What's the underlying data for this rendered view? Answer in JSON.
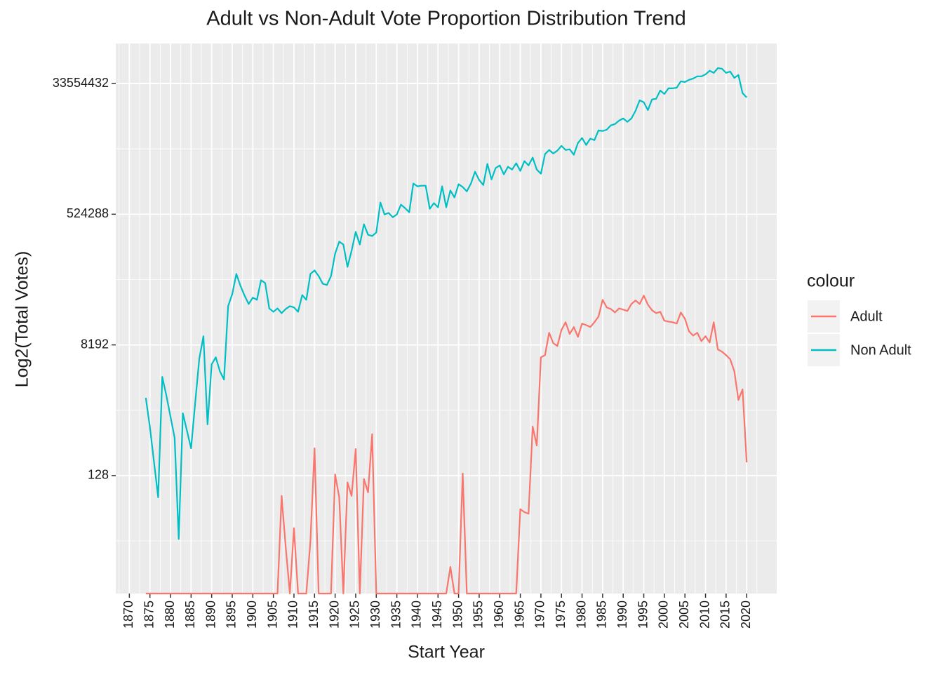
{
  "chart_data": {
    "type": "line",
    "title": "Adult vs Non-Adult Vote Proportion Distribution Trend",
    "x_label": "Start Year",
    "y_label": "Log2(Total Votes)",
    "legend_title": "colour",
    "legend": "right",
    "log_base": 2,
    "grid": true,
    "x": [
      1874,
      1875,
      1876,
      1877,
      1878,
      1879,
      1880,
      1881,
      1882,
      1883,
      1884,
      1885,
      1886,
      1887,
      1888,
      1889,
      1890,
      1891,
      1892,
      1893,
      1894,
      1895,
      1896,
      1897,
      1898,
      1899,
      1900,
      1901,
      1902,
      1903,
      1904,
      1905,
      1906,
      1907,
      1908,
      1909,
      1910,
      1911,
      1912,
      1913,
      1914,
      1915,
      1916,
      1917,
      1918,
      1919,
      1920,
      1921,
      1922,
      1923,
      1924,
      1925,
      1926,
      1927,
      1928,
      1929,
      1930,
      1931,
      1932,
      1933,
      1934,
      1935,
      1936,
      1937,
      1938,
      1939,
      1940,
      1941,
      1942,
      1943,
      1944,
      1945,
      1946,
      1947,
      1948,
      1949,
      1950,
      1951,
      1952,
      1953,
      1954,
      1955,
      1956,
      1957,
      1958,
      1959,
      1960,
      1961,
      1962,
      1963,
      1964,
      1965,
      1966,
      1967,
      1968,
      1969,
      1970,
      1971,
      1972,
      1973,
      1974,
      1975,
      1976,
      1977,
      1978,
      1979,
      1980,
      1981,
      1982,
      1983,
      1984,
      1985,
      1986,
      1987,
      1988,
      1989,
      1990,
      1991,
      1992,
      1993,
      1994,
      1995,
      1996,
      1997,
      1998,
      1999,
      2000,
      2001,
      2002,
      2003,
      2004,
      2005,
      2006,
      2007,
      2008,
      2009,
      2010,
      2011,
      2012,
      2013,
      2014,
      2015,
      2016,
      2017,
      2018,
      2019,
      2020
    ],
    "series": [
      {
        "name": "Adult",
        "color": "#F8766D",
        "values": [
          0,
          0,
          0,
          0,
          0,
          0,
          0,
          0,
          0,
          0,
          0,
          0,
          0,
          0,
          0,
          0,
          0,
          0,
          0,
          0,
          0,
          0,
          0,
          0,
          0,
          0,
          0,
          0,
          0,
          0,
          0,
          0,
          0,
          67,
          13,
          0,
          24,
          0,
          0,
          0,
          16,
          305,
          0,
          0,
          0,
          0,
          133,
          64,
          0,
          103,
          67,
          298,
          0,
          115,
          75,
          478,
          0,
          0,
          0,
          0,
          0,
          0,
          0,
          0,
          0,
          0,
          0,
          0,
          0,
          0,
          0,
          0,
          0,
          0,
          7,
          0,
          0,
          137,
          0,
          0,
          0,
          0,
          0,
          0,
          0,
          0,
          0,
          0,
          0,
          0,
          0,
          44,
          40,
          38,
          609,
          333,
          5520,
          5910,
          12070,
          8660,
          7910,
          13210,
          16850,
          11590,
          14460,
          10580,
          16150,
          15390,
          14460,
          16850,
          20170,
          34400,
          27000,
          25700,
          23000,
          26200,
          25200,
          24100,
          30100,
          33700,
          30100,
          39300,
          29500,
          24700,
          22500,
          23500,
          17700,
          17200,
          16850,
          16150,
          23000,
          18800,
          12580,
          11030,
          12070,
          9220,
          10800,
          8840,
          16850,
          7080,
          6610,
          5910,
          5180,
          3540,
          1420,
          1990,
          195
        ]
      },
      {
        "name": "Non Adult",
        "color": "#00BFC4",
        "values": [
          1520,
          596,
          195,
          64,
          2960,
          1630,
          832,
          427,
          17,
          930,
          533,
          305,
          1300,
          5290,
          10800,
          653,
          4420,
          5520,
          3540,
          2720,
          28100,
          41200,
          78400,
          53600,
          39300,
          30100,
          36900,
          34400,
          64200,
          58700,
          26200,
          23500,
          26200,
          22500,
          25700,
          28100,
          27000,
          23500,
          40000,
          34400,
          78400,
          87700,
          73200,
          57400,
          55100,
          73200,
          149600,
          219000,
          200000,
          98000,
          163600,
          299000,
          200000,
          381000,
          273000,
          262144,
          293000,
          762000,
          521000,
          546000,
          476000,
          521000,
          711000,
          637000,
          558000,
          1394000,
          1273000,
          1300000,
          1300000,
          623000,
          747000,
          654000,
          1273000,
          654000,
          1116000,
          894000,
          1364000,
          1247000,
          1085000,
          1394000,
          2026000,
          1557000,
          1327000,
          2600000,
          1590000,
          2280000,
          2477000,
          1864000,
          2376000,
          2171000,
          2655000,
          2082000,
          2846000,
          2477000,
          3179000,
          2171000,
          1903000,
          3551000,
          4052000,
          3626000,
          3968000,
          4622000,
          4052000,
          4136000,
          3479000,
          5058000,
          5931000,
          4752000,
          5809000,
          5537000,
          7562000,
          7403000,
          7722000,
          8867000,
          9244000,
          10326000,
          11073000,
          9907000,
          11073000,
          14110000,
          19680000,
          18489000,
          14403000,
          20233000,
          20653000,
          26877000,
          24059000,
          28807000,
          28807000,
          29410000,
          35970000,
          35232000,
          37749000,
          39359000,
          42178000,
          42178000,
          44896000,
          50500000,
          47144000,
          54895000,
          53754000,
          47144000,
          49124000,
          40198000,
          43990000,
          24730000,
          21540000
        ]
      }
    ],
    "xlim": [
      1866.7,
      2027.3
    ],
    "xticks": [
      1870,
      1875,
      1880,
      1885,
      1890,
      1895,
      1900,
      1905,
      1910,
      1915,
      1920,
      1925,
      1930,
      1935,
      1940,
      1945,
      1950,
      1955,
      1960,
      1965,
      1970,
      1975,
      1980,
      1985,
      1990,
      1995,
      2000,
      2005,
      2010,
      2015,
      2020
    ],
    "ylim": [
      3,
      120000000
    ],
    "yticks": [
      128,
      8192,
      524288,
      33554432
    ]
  }
}
